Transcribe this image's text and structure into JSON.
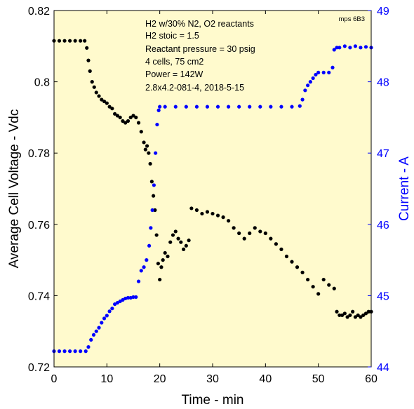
{
  "chart_data": {
    "type": "scatter",
    "title": "",
    "xlabel": "Time - min",
    "ylabel_left": "Average Cell Voltage - Vdc",
    "ylabel_right": "Current - A",
    "xlim": [
      0,
      60
    ],
    "ylim_left": [
      0.72,
      0.82
    ],
    "ylim_right": [
      44,
      49
    ],
    "xticks": [
      "0",
      "10",
      "20",
      "30",
      "40",
      "50",
      "60"
    ],
    "yticks_left": [
      "0.72",
      "0.74",
      "0.76",
      "0.78",
      "0.8",
      "0.82"
    ],
    "yticks_right": [
      "44",
      "45",
      "46",
      "47",
      "48",
      "49"
    ],
    "grid": false,
    "background": "#fffacd",
    "corner_label": "mps 6B3",
    "annotations": [
      "H2 w/30% N2, O2 reactants",
      "H2 stoic = 1.5",
      "Reactant pressure = 30 psig",
      "4 cells, 75 cm2",
      "Power = 142W",
      "2.8x4.2-081-4,  2018-5-15"
    ],
    "series": [
      {
        "axis": "left",
        "color": "#000000",
        "x": [
          0,
          1,
          2,
          3,
          4,
          5,
          5.8,
          6.2,
          6.5,
          6.8,
          7.2,
          7.6,
          8.0,
          8.5,
          9.0,
          9.5,
          10.0,
          10.5,
          11.0,
          11.5,
          12.0,
          12.5,
          13.0,
          13.5,
          14.0,
          14.5,
          15.0,
          15.5,
          16.0,
          16.5,
          17.0,
          17.3,
          17.6,
          17.9,
          18.2,
          18.5,
          18.8,
          19.1,
          19.4,
          19.7,
          20.0,
          20.3,
          20.6,
          21.0,
          21.5,
          22.0,
          22.5,
          23.0,
          23.5,
          24.0,
          24.5,
          25.0,
          25.5,
          26.0,
          27.0,
          28.0,
          29.0,
          30.0,
          31.0,
          32.0,
          33.0,
          34.0,
          35.0,
          36.0,
          37.0,
          38.0,
          39.0,
          40.0,
          41.0,
          42.0,
          43.0,
          44.0,
          45.0,
          46.0,
          47.0,
          48.0,
          49.0,
          50.0,
          51.0,
          52.0,
          53.0,
          53.5,
          54.0,
          54.5,
          55.0,
          55.5,
          56.0,
          56.5,
          57.0,
          57.5,
          58.0,
          58.5,
          59.0,
          59.5,
          60.0
        ],
        "y": [
          0.8115,
          0.8115,
          0.8115,
          0.8115,
          0.8115,
          0.8115,
          0.8115,
          0.8095,
          0.806,
          0.803,
          0.8,
          0.7985,
          0.797,
          0.796,
          0.795,
          0.7945,
          0.794,
          0.793,
          0.7925,
          0.791,
          0.7905,
          0.79,
          0.789,
          0.7885,
          0.789,
          0.79,
          0.7905,
          0.79,
          0.7885,
          0.786,
          0.783,
          0.781,
          0.782,
          0.78,
          0.777,
          0.772,
          0.768,
          0.764,
          0.757,
          0.749,
          0.7445,
          0.748,
          0.75,
          0.752,
          0.751,
          0.755,
          0.757,
          0.758,
          0.756,
          0.755,
          0.753,
          0.754,
          0.7555,
          0.7645,
          0.764,
          0.763,
          0.7635,
          0.763,
          0.7625,
          0.762,
          0.761,
          0.759,
          0.7575,
          0.756,
          0.7575,
          0.759,
          0.758,
          0.7575,
          0.756,
          0.7545,
          0.753,
          0.751,
          0.7495,
          0.748,
          0.7465,
          0.7445,
          0.7425,
          0.7405,
          0.7445,
          0.743,
          0.742,
          0.7355,
          0.7345,
          0.7345,
          0.735,
          0.734,
          0.7345,
          0.7355,
          0.734,
          0.7345,
          0.734,
          0.7345,
          0.735,
          0.7355,
          0.7355
        ]
      },
      {
        "axis": "right",
        "color": "#0000ff",
        "x": [
          0,
          1,
          2,
          3,
          4,
          5,
          6.0,
          6.5,
          7.0,
          7.5,
          8.0,
          8.5,
          9.0,
          9.5,
          10.0,
          10.5,
          11.0,
          11.5,
          12.0,
          12.5,
          13.0,
          13.5,
          14.0,
          14.5,
          15.0,
          15.5,
          16.0,
          16.5,
          17.0,
          17.5,
          18.0,
          18.3,
          18.6,
          18.9,
          19.2,
          19.5,
          19.8,
          20.0,
          21,
          23,
          25,
          27,
          29,
          31,
          33,
          35,
          37,
          39,
          41,
          43,
          45,
          46.5,
          47.0,
          47.5,
          48.0,
          48.5,
          49.0,
          49.5,
          50.0,
          51.0,
          52.0,
          52.7,
          53.0,
          53.5,
          54,
          55,
          56,
          57,
          58,
          59,
          60
        ],
        "y": [
          44.22,
          44.22,
          44.22,
          44.22,
          44.22,
          44.22,
          44.22,
          44.28,
          44.38,
          44.45,
          44.5,
          44.55,
          44.62,
          44.68,
          44.72,
          44.78,
          44.82,
          44.88,
          44.9,
          44.92,
          44.94,
          44.96,
          44.97,
          44.97,
          44.98,
          44.98,
          45.2,
          45.35,
          45.4,
          45.5,
          45.7,
          45.95,
          46.2,
          46.55,
          47.0,
          47.4,
          47.6,
          47.65,
          47.65,
          47.65,
          47.65,
          47.65,
          47.65,
          47.65,
          47.65,
          47.65,
          47.65,
          47.65,
          47.65,
          47.65,
          47.65,
          47.66,
          47.75,
          47.88,
          47.95,
          48.0,
          48.05,
          48.1,
          48.13,
          48.13,
          48.13,
          48.2,
          48.45,
          48.48,
          48.48,
          48.5,
          48.48,
          48.5,
          48.48,
          48.49,
          48.48
        ]
      }
    ]
  }
}
